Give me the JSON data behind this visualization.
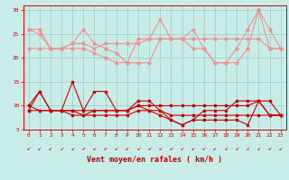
{
  "xlabel": "Vent moyen/en rafales ( km/h )",
  "ylim": [
    5,
    31
  ],
  "yticks": [
    5,
    10,
    15,
    20,
    25,
    30
  ],
  "xticks": [
    0,
    1,
    2,
    3,
    4,
    5,
    6,
    7,
    8,
    9,
    10,
    11,
    12,
    13,
    14,
    15,
    16,
    17,
    18,
    19,
    20,
    21,
    22,
    23
  ],
  "bg_color": "#c8ece8",
  "grid_color": "#a0c8c4",
  "series_pink": [
    [
      26,
      26,
      22,
      22,
      23,
      26,
      23,
      22,
      21,
      19,
      24,
      24,
      28,
      24,
      24,
      26,
      22,
      19,
      19,
      22,
      26,
      30,
      22,
      22
    ],
    [
      22,
      22,
      22,
      22,
      23,
      23,
      22,
      23,
      23,
      23,
      23,
      24,
      24,
      24,
      24,
      24,
      24,
      24,
      24,
      24,
      24,
      24,
      22,
      22
    ],
    [
      26,
      25,
      22,
      22,
      22,
      22,
      21,
      20,
      19,
      19,
      19,
      19,
      24,
      24,
      24,
      22,
      22,
      19,
      19,
      19,
      22,
      30,
      26,
      22
    ]
  ],
  "series_red": [
    [
      9,
      13,
      9,
      9,
      15,
      9,
      13,
      13,
      9,
      9,
      11,
      11,
      9,
      7,
      6,
      7,
      9,
      9,
      9,
      11,
      11,
      11,
      8,
      8
    ],
    [
      10,
      9,
      9,
      9,
      9,
      8,
      9,
      9,
      9,
      9,
      10,
      9,
      9,
      8,
      8,
      8,
      8,
      8,
      8,
      8,
      8,
      8,
      8,
      8
    ],
    [
      9,
      9,
      9,
      9,
      8,
      8,
      8,
      8,
      8,
      8,
      9,
      9,
      8,
      7,
      6,
      7,
      7,
      7,
      7,
      7,
      6,
      11,
      11,
      8
    ],
    [
      10,
      13,
      9,
      9,
      9,
      9,
      9,
      9,
      9,
      9,
      10,
      10,
      10,
      10,
      10,
      10,
      10,
      10,
      10,
      10,
      10,
      11,
      8,
      8
    ]
  ],
  "pink_color": "#f09090",
  "red_color": "#cc0000",
  "marker_size": 2.0,
  "linewidth": 0.8,
  "arrow_char": "↙",
  "tick_fontsize": 4.5,
  "xlabel_fontsize": 6.0
}
